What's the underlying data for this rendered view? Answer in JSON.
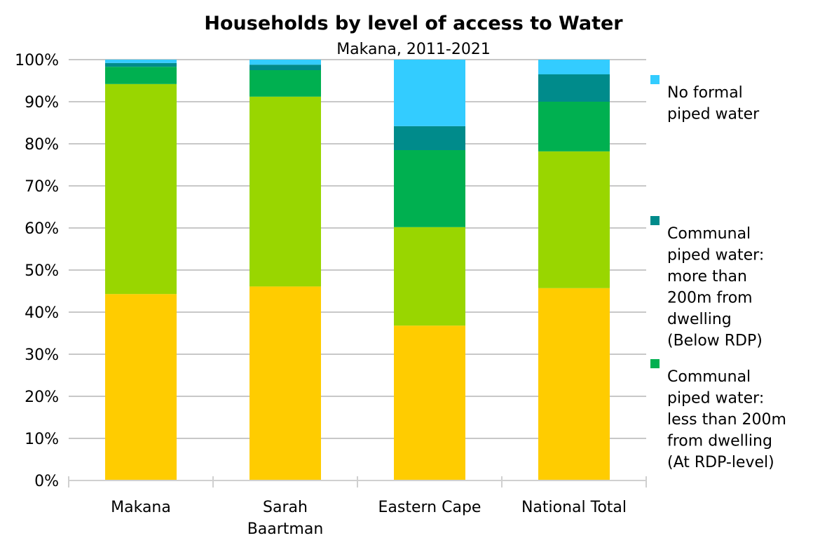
{
  "chart_data": {
    "type": "bar",
    "stacked": true,
    "percent_stacked": true,
    "title": "Households by level of access to Water",
    "subtitle": "Makana, 2011-2021",
    "xlabel": "",
    "ylabel": "",
    "ylim": [
      0,
      100
    ],
    "y_ticks": [
      "0%",
      "10%",
      "20%",
      "30%",
      "40%",
      "50%",
      "60%",
      "70%",
      "80%",
      "90%",
      "100%"
    ],
    "grid": true,
    "legend_position": "right",
    "categories": [
      [
        "Makana"
      ],
      [
        "Sarah",
        "Baartman"
      ],
      [
        "Eastern Cape"
      ],
      [
        "National Total"
      ]
    ],
    "series": [
      {
        "color": "#ffcc00",
        "values": [
          44.3,
          46.1,
          36.8,
          45.7
        ]
      },
      {
        "color": "#99d600",
        "values": [
          49.9,
          45.1,
          23.4,
          32.5
        ]
      },
      {
        "color": "#00b050",
        "values": [
          4.1,
          6.3,
          18.3,
          11.8
        ]
      },
      {
        "name": [
          "Communal",
          "piped water:",
          "more than",
          "200m from",
          "dwelling",
          "(Below RDP)"
        ],
        "color": "#008b8b",
        "values": [
          0.9,
          1.3,
          5.7,
          6.5
        ]
      },
      {
        "name": [
          "No formal",
          "piped water"
        ],
        "color": "#33ccff",
        "values": [
          0.8,
          1.2,
          15.8,
          3.5
        ]
      }
    ],
    "legend_entries": [
      {
        "color": "#33ccff",
        "label": [
          "No formal",
          "piped water"
        ]
      },
      {
        "color": "#008b8b",
        "label": [
          "Communal",
          "piped water:",
          "more than",
          "200m from",
          "dwelling",
          "(Below RDP)"
        ]
      },
      {
        "color": "#00b050",
        "label": [
          "Communal",
          "piped water:",
          "less than 200m",
          "from dwelling",
          "(At RDP-level)"
        ]
      }
    ]
  }
}
